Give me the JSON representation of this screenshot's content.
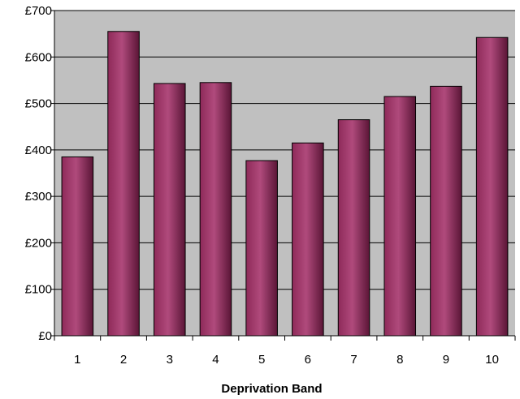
{
  "chart_data": {
    "type": "bar",
    "title": "",
    "xlabel": "Deprivation Band",
    "ylabel": "",
    "categories": [
      "1",
      "2",
      "3",
      "4",
      "5",
      "6",
      "7",
      "8",
      "9",
      "10"
    ],
    "values": [
      385,
      655,
      543,
      545,
      377,
      415,
      465,
      515,
      537,
      642
    ],
    "ylim": [
      0,
      700
    ],
    "yticks": [
      0,
      100,
      200,
      300,
      400,
      500,
      600,
      700
    ],
    "ytick_labels": [
      "£0",
      "£100",
      "£200",
      "£300",
      "£400",
      "£500",
      "£600",
      "£700"
    ],
    "grid": true,
    "legend": "none",
    "colors": {
      "plot_background": "#c0c0c0",
      "bar_fill": "#8e2a59",
      "bar_highlight": "#b04a7c",
      "bar_shadow": "#5a1536",
      "gridline": "#000000"
    }
  }
}
